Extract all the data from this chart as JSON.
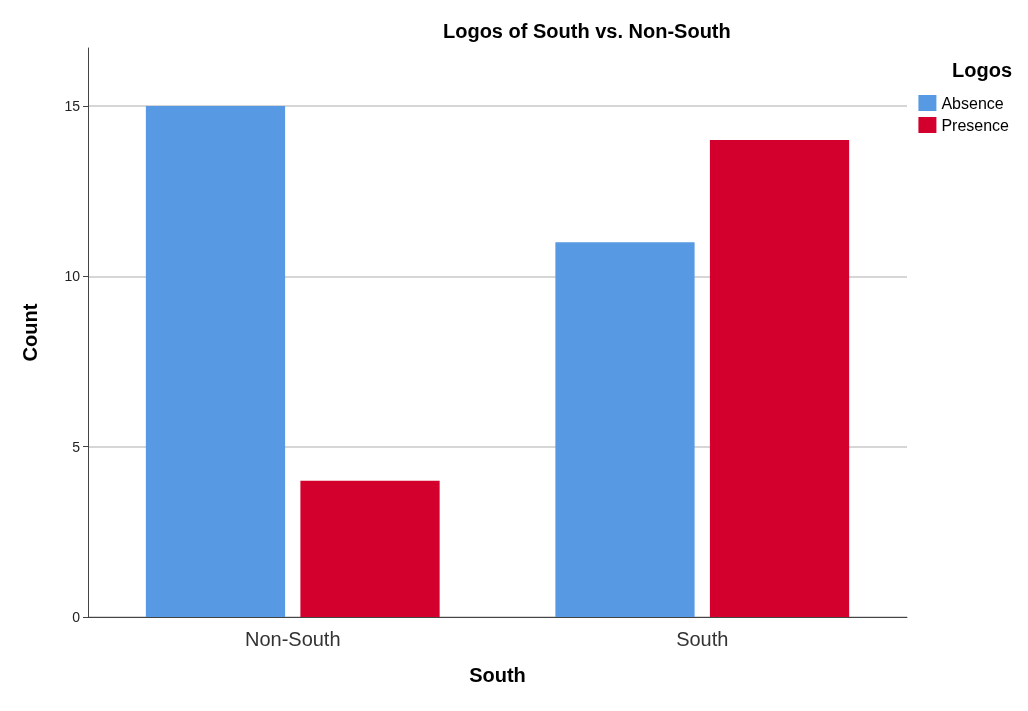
{
  "chart_data": {
    "type": "bar",
    "title": "Logos of South vs. Non-South",
    "xlabel": "South",
    "ylabel": "Count",
    "legend_title": "Logos",
    "categories": [
      "Non-South",
      "South"
    ],
    "series": [
      {
        "name": "Absence",
        "color": "#5899e3",
        "values": [
          15,
          11
        ]
      },
      {
        "name": "Presence",
        "color": "#d3002e",
        "values": [
          4,
          14
        ]
      }
    ],
    "ylim": [
      0,
      16.7
    ],
    "yticks": [
      0,
      5,
      10,
      15
    ],
    "grid": "y",
    "legend": "top right"
  }
}
